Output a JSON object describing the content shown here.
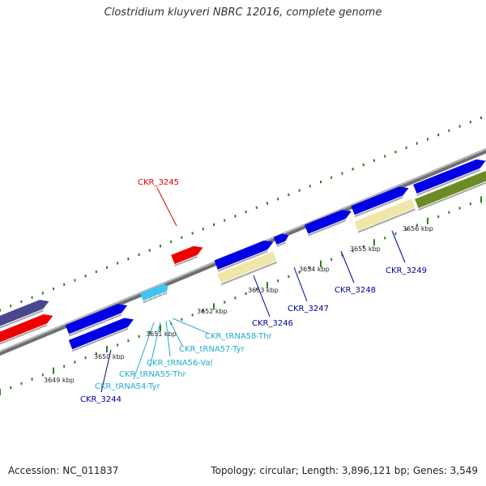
{
  "title": "Clostridium kluyveri NBRC 12016, complete genome",
  "footer": {
    "accession": "Accession: NC_011837",
    "summary": "Topology: circular; Length: 3,896,121 bp; Genes: 3,549"
  },
  "colors": {
    "backbone": "#8a8a8a",
    "tick": "#2e7d1e",
    "forward_cds": "#0000e6",
    "reverse_cds": "#0000e6",
    "red_feature": "#ee0000",
    "pseudo": "#f0e6a8",
    "olive": "#6b8c24",
    "purple": "#4a4790",
    "trna": "#40c4f0",
    "label_red": "#dd0000",
    "label_blue": "#000099",
    "label_cyan": "#22aacc"
  },
  "scale_labels": [
    "3649 kbp",
    "3650 kbp",
    "3651 kbp",
    "3652 kbp",
    "3653 kbp",
    "3654 kbp",
    "3655 kbp",
    "3656 kbp"
  ],
  "gene_labels": [
    {
      "text": "CKR_3245",
      "color": "label_red"
    },
    {
      "text": "CKR_3244",
      "color": "label_blue"
    },
    {
      "text": "CKR_tRNA54-Tyr",
      "color": "label_cyan"
    },
    {
      "text": "CKR_tRNA55-Thr",
      "color": "label_cyan"
    },
    {
      "text": "CKR_tRNA56-Val",
      "color": "label_cyan"
    },
    {
      "text": "CKR_tRNA57-Tyr",
      "color": "label_cyan"
    },
    {
      "text": "CKR_tRNA58-Thr",
      "color": "label_cyan"
    },
    {
      "text": "CKR_3246",
      "color": "label_blue"
    },
    {
      "text": "CKR_3247",
      "color": "label_blue"
    },
    {
      "text": "CKR_3248",
      "color": "label_blue"
    },
    {
      "text": "CKR_3249",
      "color": "label_blue"
    }
  ]
}
